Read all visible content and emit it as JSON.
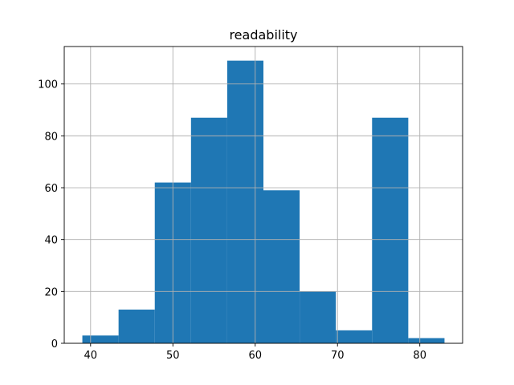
{
  "chart_data": {
    "type": "bar",
    "title": "readability",
    "xlabel": "",
    "ylabel": "",
    "bin_edges": [
      39.0,
      43.4,
      47.8,
      52.2,
      56.6,
      61.0,
      65.4,
      69.8,
      74.2,
      78.6,
      83.0
    ],
    "values": [
      3,
      13,
      62,
      87,
      109,
      59,
      20,
      5,
      87,
      2
    ],
    "xlim": [
      36.8,
      85.2
    ],
    "ylim": [
      0,
      114.45
    ],
    "xticks": [
      40,
      50,
      60,
      70,
      80
    ],
    "yticks": [
      0,
      20,
      40,
      60,
      80,
      100
    ],
    "grid": true,
    "bar_color": "#1f77b4",
    "grid_color": "#b0b0b0"
  }
}
